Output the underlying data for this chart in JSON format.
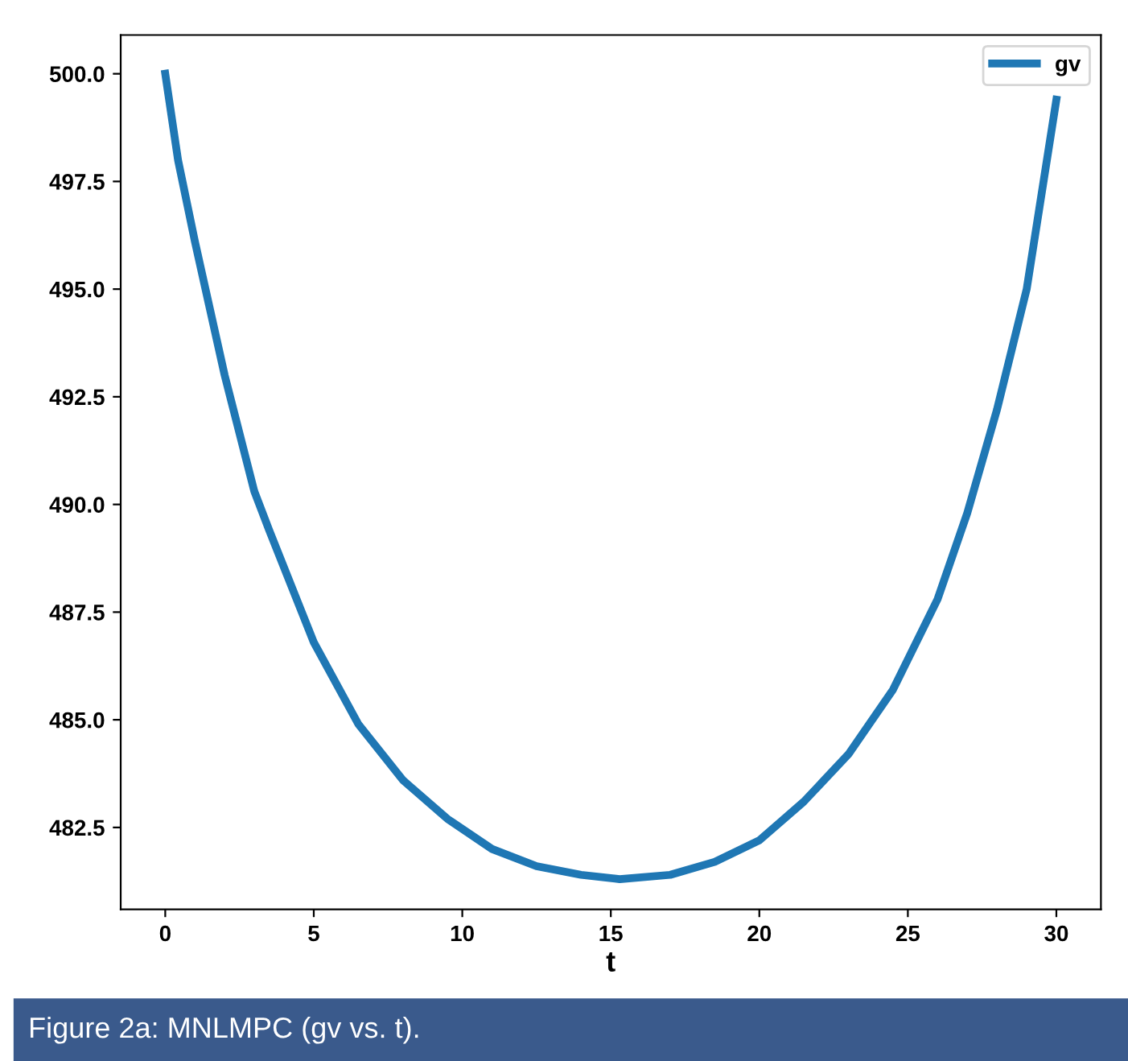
{
  "chart_data": {
    "type": "line",
    "xlabel": "t",
    "annotations": [
      "Figure 2a: MNLMPC (gv vs. t)."
    ],
    "x": [
      0,
      0.43,
      1,
      2,
      3,
      3.5,
      5,
      6.5,
      8,
      9.5,
      11,
      12.5,
      14,
      15.3,
      17,
      18.5,
      20,
      21.5,
      23,
      24.5,
      26,
      27,
      28,
      29,
      30
    ],
    "series": [
      {
        "name": "gv",
        "color": "#1f77b4",
        "values": [
          500.0,
          498.0,
          496.1,
          493.0,
          490.3,
          489.4,
          486.8,
          484.9,
          483.6,
          482.7,
          482.0,
          481.6,
          481.4,
          481.3,
          481.4,
          481.7,
          482.2,
          483.1,
          484.2,
          485.7,
          487.8,
          489.8,
          492.2,
          495.0,
          499.4
        ]
      }
    ],
    "xlim": [
      -1.5,
      31.5
    ],
    "ylim": [
      480.6,
      500.9
    ],
    "xticks": [
      0,
      5,
      10,
      15,
      20,
      25,
      30
    ],
    "yticks": [
      {
        "value": 482.5,
        "label": "482.5"
      },
      {
        "value": 485,
        "label": "485.0"
      },
      {
        "value": 487.5,
        "label": "487.5"
      },
      {
        "value": 490,
        "label": "490.0"
      },
      {
        "value": 492.5,
        "label": "492.5"
      },
      {
        "value": 495,
        "label": "495.0"
      },
      {
        "value": 497.5,
        "label": "497.5"
      },
      {
        "value": 500,
        "label": "500.0"
      }
    ],
    "grid": false,
    "legend": "top right",
    "line_style": "solid",
    "marker": "none"
  }
}
